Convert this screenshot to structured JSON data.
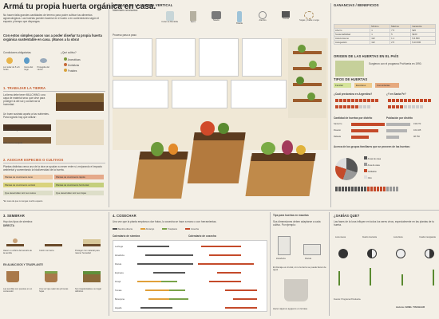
{
  "title": "Armá tu propia huerta orgánica en casa.",
  "intro": "No hacen falta grandes cantidades de terreno para poder cultivar tus alimentos agroecológicos. Las huertas pueden hacerse en el suelo o en contenedores según el espacio y tiempo que dispongas.",
  "intro2": "Con estos simples pasos vas a poder diseñar tu propia huerta orgánica sustentable en casa. ¡Manos a la obra!",
  "conditions": {
    "label": "Condiciones obligatorias",
    "items": [
      "Luz solar de 5 a 6 horas",
      "Cerca del riego",
      "Protegida del viento"
    ],
    "optional_label": "¿Qué cultivo?",
    "optional": [
      "Aromáticas",
      "Hortalizas",
      "Frutales"
    ]
  },
  "step1": {
    "title": "1. TRABAJAR LA TIERRA",
    "text1": "La tierra debe tener MULCHING: una capa de material seco que sirve para proteger la del sol y conservar la humedad.",
    "text2": "Un buen sustrato aporta a tus nutrientes. Para lograrlo hay que utilizar:",
    "r1": "50% tierra negra",
    "r2": "50% tierra compost"
  },
  "step2": {
    "title": "2. ASOCIAR ESPECIES O CULTIVOS",
    "text": "Plantas distintas cerca una de la otra se ayudan a crecer entre sí, mejorando el impacto ambiental y aumentando la biodiversidad de la huerta.",
    "tags": [
      "Plantas de crecimiento lento",
      "Plantas de crecimiento rápido",
      "Plantas de crecimiento vertical",
      "Plantas de crecimiento horizontal",
      "Que desarrollan raíz sus raíces",
      "Que desarrollan raíz sus hojas"
    ],
    "note": "*En caso de que no tengas mucho espacio"
  },
  "step3": {
    "title": "3. SEMBRAR",
    "sub1": "Hay dos tipos de siembra:",
    "direct": "DIRECTA",
    "d1": "Hacer un orificio del tamaño de la semilla",
    "d2": "Cubrir con tierra",
    "d3": "Proteger con material para retener humedad",
    "indirect": "EN ALMÁCIGOS Y TRASPLANTE",
    "i1": "Las semillas son puestas en un contenedor",
    "i2": "Una vez que salen las primeras hojas",
    "i3": "Son trasplantadas a su lugar definitivo"
  },
  "middle": {
    "title": "ARMADO DE LA HUERTA VERTICAL",
    "materials": "Materiales necesarios:",
    "tools": [
      "Cutter de Bombilla",
      "Tijera",
      "Taladro",
      "Botella",
      "Alambre",
      "Pinzas",
      "Sogas y Cable o soga"
    ],
    "steps_label": "Proceso paso a paso"
  },
  "step4": {
    "title": "4. COSECHAR",
    "text": "Una vez que la planta empieza a dar frutos, la cosecha se hace a mano o con herramientas.",
    "legend": [
      "Siembra directa",
      "Almácigo",
      "Trasplante",
      "Cosecha"
    ],
    "cal1": "Calendario de siembra",
    "cal2": "Calendario de cosecha",
    "crops": [
      "Lechuga",
      "Zanahoria",
      "Rúcula",
      "Espinaca",
      "Perejil",
      "Tomate",
      "Berenjena",
      "Zapallo"
    ]
  },
  "tips": {
    "title": "Tips para huertas en macetas",
    "sub": "Sus dimensiones deben adaptarse a cada cultivo. Por ejemplo:",
    "a": "Zanahoria",
    "b": "Rúcula",
    "c": "El drenaje es crucial, si no la tierra se puede llenar de agua",
    "d": "Hacer algunos agujeros en la base"
  },
  "moon": {
    "title": "¿SABÍAS QUE?",
    "text": "Las fases de la luna influyen en todos los seres vivos, especialmente en las plantas de tu huerta.",
    "labels": [
      "Luna nueva",
      "Cuarto creciente",
      "Luna llena",
      "Cuarto menguante"
    ]
  },
  "stats": {
    "title": "GANANCIAS / BENEFICIOS",
    "cols": [
      "",
      "Mínimo",
      "Máximo",
      "Ganancia"
    ],
    "rows": [
      [
        "Ahorro",
        "1",
        "7.5",
        "$20"
      ],
      [
        "Sustentabilidad",
        "1",
        "5",
        "$100"
      ],
      [
        "Autoconsumo",
        "112",
        "1.1",
        "$ 3.800"
      ],
      [
        "Autogestión",
        "112",
        "2.5",
        "$ 10.600"
      ]
    ],
    "origin_title": "ORIGEN DE LAS HUERTAS EN EL PAÍS",
    "origin": "Surgieron con el programa ProHuerta en 1990.",
    "tipos_title": "TIPOS DE HUERTAS",
    "tipos": [
      "Familiar",
      "Escolares",
      "Comunitarias"
    ],
    "q1": "¿Cuál predomina en Argentina?",
    "q2": "¿Y en Santa Fe?",
    "ag_title": "Cantidad de huertas por distrito",
    "pop_title": "Población por distrito",
    "bars": [
      {
        "l": "Santa Fe",
        "v": "199.372"
      },
      {
        "l": "Rosario",
        "v": "161.025"
      },
      {
        "l": "Rafaela",
        "v": "98.750"
      }
    ],
    "groups_title": "Acerca de los grupos familiares que se proveen de las huertas:",
    "groups": [
      "Amas de casa",
      "Ama de casa",
      "Jubilados",
      "Otro"
    ],
    "credit": "Fuente: Programa ProHuerta.",
    "author": "Autora: ARIEL TISCHLER"
  }
}
